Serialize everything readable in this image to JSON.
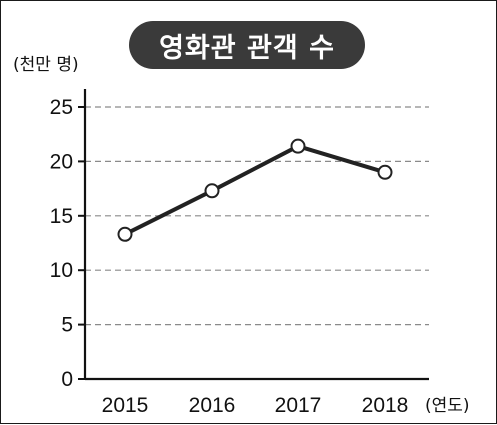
{
  "chart_data": {
    "type": "line",
    "title": "영화관 관객 수",
    "ylabel": "(천만 명)",
    "xlabel": "(연도)",
    "categories": [
      "2015",
      "2016",
      "2017",
      "2018"
    ],
    "series": [
      {
        "values": [
          13.3,
          17.3,
          21.4,
          19.0
        ]
      }
    ],
    "yticks": [
      0,
      5,
      10,
      15,
      20,
      25
    ],
    "ylim": [
      0,
      25
    ],
    "grid": "dashed horizontal",
    "colors": {
      "line": "#222222",
      "marker_fill": "#ffffff",
      "grid": "#8a8a8a",
      "title_bg": "#3a3a3a",
      "title_text": "#ffffff"
    }
  }
}
